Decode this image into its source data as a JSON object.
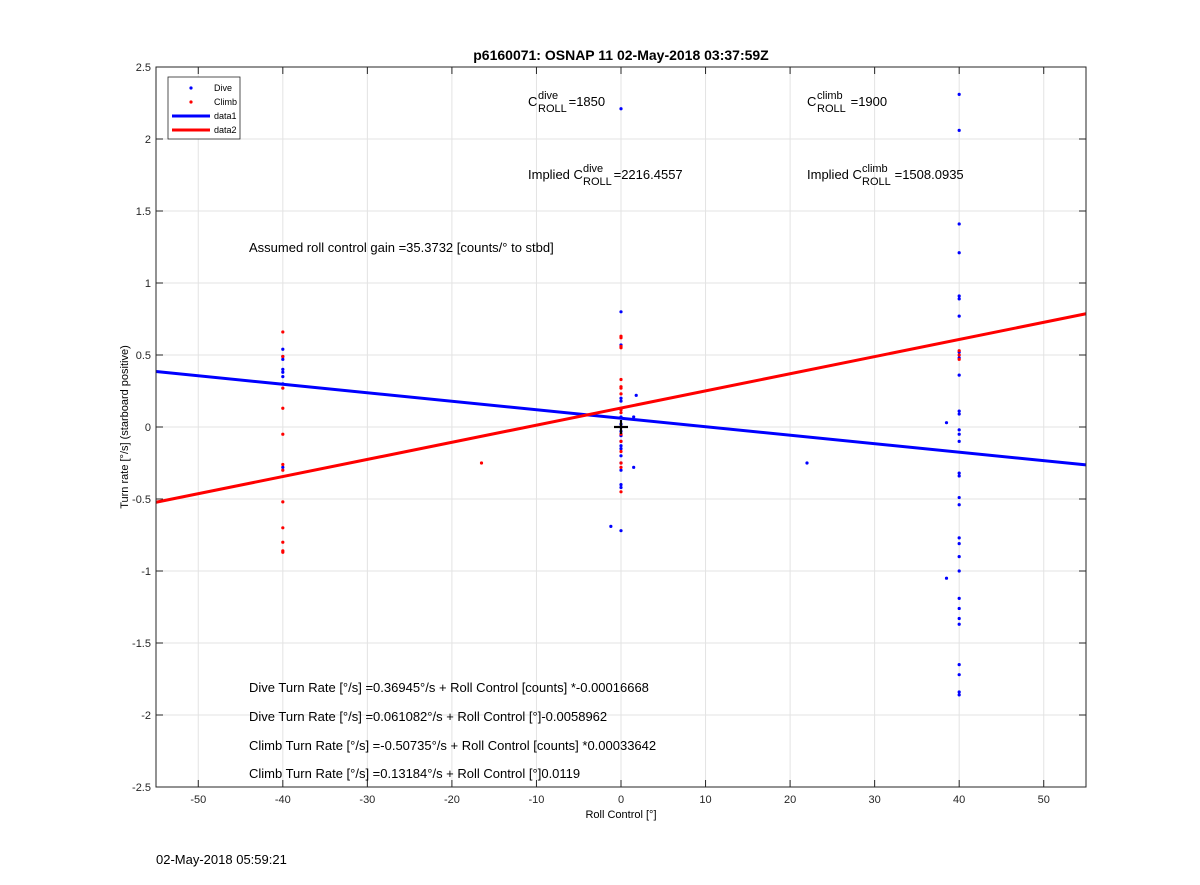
{
  "chart_data": {
    "type": "scatter",
    "title": "p6160071: OSNAP 11 02-May-2018 03:37:59Z",
    "xlabel": "Roll Control [°]",
    "ylabel": "Turn rate [°/s] (starboard positive)",
    "xlim": [
      -55,
      55
    ],
    "ylim": [
      -2.5,
      2.5
    ],
    "xticks": [
      -50,
      -40,
      -30,
      -20,
      -10,
      0,
      10,
      20,
      30,
      40,
      50
    ],
    "yticks": [
      -2.5,
      -2,
      -1.5,
      -1,
      -0.5,
      0,
      0.5,
      1,
      1.5,
      2,
      2.5
    ],
    "xtick_labels": [
      "-50",
      "-40",
      "-30",
      "-20",
      "-10",
      "0",
      "10",
      "20",
      "30",
      "40",
      "50"
    ],
    "ytick_labels": [
      "-2.5",
      "-2",
      "-1.5",
      "-1",
      "-0.5",
      "0",
      "0.5",
      "1",
      "1.5",
      "2",
      "2.5"
    ],
    "grid": true,
    "legend_position": "top-left",
    "series": [
      {
        "name": "Dive",
        "kind": "points",
        "color": "#0000ff",
        "points": [
          [
            -40,
            0.54
          ],
          [
            -40,
            0.49
          ],
          [
            -40,
            0.47
          ],
          [
            -40,
            0.4
          ],
          [
            -40,
            0.38
          ],
          [
            -40,
            0.35
          ],
          [
            -40,
            0.3
          ],
          [
            -40,
            -0.28
          ],
          [
            0,
            2.21
          ],
          [
            0,
            0.8
          ],
          [
            0,
            0.57
          ],
          [
            0,
            0.2
          ],
          [
            0,
            0.18
          ],
          [
            0,
            0.07
          ],
          [
            0,
            0.02
          ],
          [
            0,
            -0.03
          ],
          [
            0,
            -0.06
          ],
          [
            0,
            -0.1
          ],
          [
            0,
            -0.13
          ],
          [
            0,
            -0.15
          ],
          [
            0,
            -0.2
          ],
          [
            0,
            -0.25
          ],
          [
            0,
            -0.3
          ],
          [
            0,
            -0.4
          ],
          [
            0,
            -0.42
          ],
          [
            0,
            -0.72
          ],
          [
            1.5,
            0.07
          ],
          [
            1.5,
            -0.28
          ],
          [
            1.8,
            0.22
          ],
          [
            -1.2,
            -0.69
          ],
          [
            22,
            -0.25
          ],
          [
            38.5,
            0.03
          ],
          [
            38.5,
            -1.05
          ],
          [
            40,
            2.31
          ],
          [
            40,
            2.06
          ],
          [
            40,
            1.41
          ],
          [
            40,
            1.21
          ],
          [
            40,
            0.91
          ],
          [
            40,
            0.89
          ],
          [
            40,
            0.77
          ],
          [
            40,
            0.52
          ],
          [
            40,
            0.48
          ],
          [
            40,
            0.36
          ],
          [
            40,
            0.11
          ],
          [
            40,
            0.09
          ],
          [
            40,
            -0.02
          ],
          [
            40,
            -0.05
          ],
          [
            40,
            -0.1
          ],
          [
            40,
            -0.32
          ],
          [
            40,
            -0.34
          ],
          [
            40,
            -0.49
          ],
          [
            40,
            -0.54
          ],
          [
            40,
            -0.77
          ],
          [
            40,
            -0.81
          ],
          [
            40,
            -0.9
          ],
          [
            40,
            -1.0
          ],
          [
            40,
            -1.19
          ],
          [
            40,
            -1.26
          ],
          [
            40,
            -1.33
          ],
          [
            40,
            -1.37
          ],
          [
            40,
            -1.65
          ],
          [
            40,
            -1.72
          ],
          [
            40,
            -1.84
          ],
          [
            40,
            -1.86
          ]
        ]
      },
      {
        "name": "Climb",
        "kind": "points",
        "color": "#ff0000",
        "points": [
          [
            -40,
            0.66
          ],
          [
            -40,
            0.49
          ],
          [
            -40,
            0.27
          ],
          [
            -40,
            0.13
          ],
          [
            -40,
            -0.05
          ],
          [
            -40,
            -0.26
          ],
          [
            -40,
            -0.3
          ],
          [
            -40,
            -0.52
          ],
          [
            -40,
            -0.7
          ],
          [
            -40,
            -0.8
          ],
          [
            -40,
            -0.86
          ],
          [
            -40,
            -0.87
          ],
          [
            -16.5,
            -0.25
          ],
          [
            0,
            0.63
          ],
          [
            0,
            0.62
          ],
          [
            0,
            0.56
          ],
          [
            0,
            0.55
          ],
          [
            0,
            0.33
          ],
          [
            0,
            0.28
          ],
          [
            0,
            0.27
          ],
          [
            0,
            0.23
          ],
          [
            0,
            0.12
          ],
          [
            0,
            0.1
          ],
          [
            0,
            0.0
          ],
          [
            0,
            -0.05
          ],
          [
            0,
            -0.1
          ],
          [
            0,
            -0.17
          ],
          [
            0,
            -0.25
          ],
          [
            0,
            -0.28
          ],
          [
            0,
            -0.45
          ],
          [
            40,
            0.53
          ],
          [
            40,
            0.5
          ],
          [
            40,
            0.47
          ]
        ]
      },
      {
        "name": "data1",
        "kind": "line",
        "color": "#0000ff",
        "intercept": 0.061082,
        "slope": -0.0058962
      },
      {
        "name": "data2",
        "kind": "line",
        "color": "#ff0000",
        "intercept": 0.13184,
        "slope": 0.0119
      }
    ],
    "annotations": {
      "c_dive_C": "C",
      "c_dive_sup": "dive",
      "c_dive_sub": "ROLL",
      "c_dive_val": " =1850",
      "c_climb_C": "C",
      "c_climb_sup": "climb",
      "c_climb_sub": "ROLL",
      "c_climb_val": " =1900",
      "implied_dive_prefix": "Implied C",
      "implied_dive_sup": "dive",
      "implied_dive_sub": "ROLL",
      "implied_dive_val": " =2216.4557",
      "implied_climb_prefix": "Implied C",
      "implied_climb_sup": "climb",
      "implied_climb_sub": "ROLL",
      "implied_climb_val": " =1508.0935",
      "gain": "Assumed roll control gain =35.3732 [counts/° to stbd]",
      "eq1": "Dive Turn Rate [°/s] =0.36945°/s + Roll Control [counts] *-0.00016668",
      "eq2": "Dive Turn Rate [°/s] =0.061082°/s + Roll Control [°]-0.0058962",
      "eq3": "Climb Turn Rate [°/s] =-0.50735°/s + Roll Control [counts] *0.00033642",
      "eq4": "Climb Turn Rate [°/s] =0.13184°/s + Roll Control [°]0.0119"
    },
    "marker": {
      "x": 0,
      "y": 0,
      "symbol": "+"
    }
  },
  "footer": {
    "timestamp": "02-May-2018 05:59:21"
  }
}
